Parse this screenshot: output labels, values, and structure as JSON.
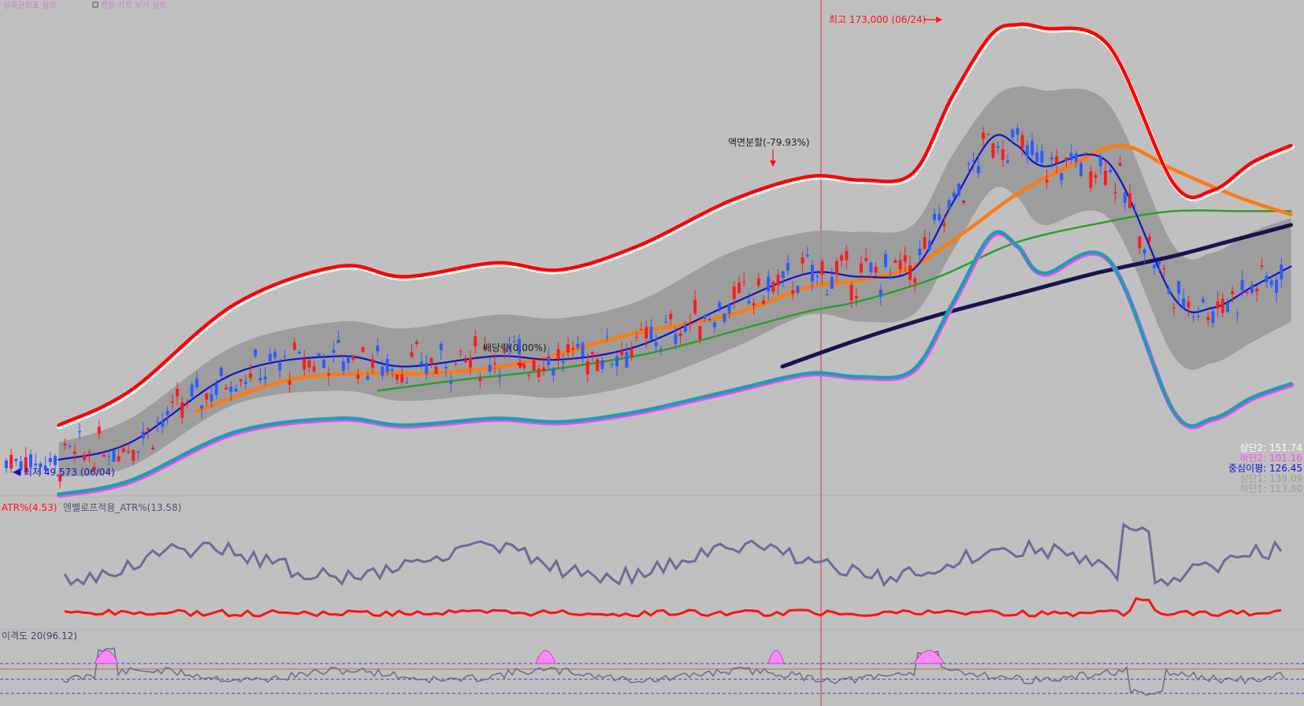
{
  "top_bar": {
    "legend_left": "일목균형표 설정",
    "legend_right": "캔들 차트 보기 설정"
  },
  "chart_data": {
    "type": "line",
    "title": "",
    "panels": [
      {
        "name": "price",
        "annotations": {
          "high": "최고 173,000 (06/24)",
          "low": "최저 49,573 (06/04)",
          "split": "액면분할(-79.93%)",
          "dividend": "배당락(0.00%)"
        },
        "legend": [
          {
            "label": "상단2: 151.74",
            "color": "#ffffff"
          },
          {
            "label": "하단2: 101.16",
            "color": "#ff44ff"
          },
          {
            "label": "중심이평: 126.45",
            "color": "#1010cc"
          },
          {
            "label": "상단1: 139.09",
            "color": "#9a9a9a"
          },
          {
            "label": "하단1: 113.80",
            "color": "#9a9a9a"
          }
        ],
        "series": [
          {
            "name": "상단2",
            "color": "#ff0000",
            "x": [
              0.045,
              0.1,
              0.18,
              0.26,
              0.31,
              0.38,
              0.43,
              0.49,
              0.56,
              0.62,
              0.66,
              0.7,
              0.73,
              0.76,
              0.78,
              0.8,
              0.85,
              0.9,
              0.93,
              0.96,
              0.99
            ],
            "y": [
              60,
              70,
              95,
              106,
              103,
              107,
              105,
              112,
              125,
              132,
              131,
              133,
              155,
              173,
              176,
              175,
              170,
              130,
              128,
              136,
              141
            ]
          },
          {
            "name": "상단1",
            "color": "#9a9a9a",
            "x": [
              0.045,
              0.1,
              0.18,
              0.26,
              0.31,
              0.38,
              0.43,
              0.49,
              0.56,
              0.62,
              0.66,
              0.7,
              0.73,
              0.76,
              0.78,
              0.8,
              0.85,
              0.9,
              0.93,
              0.96,
              0.99
            ],
            "y": [
              55,
              62,
              83,
              90,
              88,
              92,
              91,
              96,
              110,
              116,
              116,
              118,
              138,
              154,
              158,
              157,
              153,
              112,
              110,
              116,
              120
            ]
          },
          {
            "name": "중심이평",
            "color": "#1010cc",
            "x": [
              0.045,
              0.1,
              0.18,
              0.26,
              0.31,
              0.38,
              0.43,
              0.49,
              0.56,
              0.62,
              0.66,
              0.7,
              0.73,
              0.76,
              0.78,
              0.8,
              0.85,
              0.9,
              0.93,
              0.96,
              0.99
            ],
            "y": [
              50,
              55,
              75,
              80,
              77,
              80,
              79,
              83,
              95,
              104,
              103,
              105,
              124,
              143,
              141,
              135,
              136,
              97,
              94,
              100,
              106
            ]
          },
          {
            "name": "하단1",
            "color": "#9a9a9a",
            "x": [
              0.045,
              0.1,
              0.18,
              0.26,
              0.31,
              0.38,
              0.43,
              0.49,
              0.56,
              0.62,
              0.66,
              0.7,
              0.73,
              0.76,
              0.78,
              0.8,
              0.85,
              0.9,
              0.93,
              0.96,
              0.99
            ],
            "y": [
              45,
              48,
              66,
              70,
              67,
              69,
              68,
              72,
              82,
              92,
              90,
              92,
              110,
              128,
              126,
              118,
              120,
              80,
              78,
              84,
              90
            ]
          },
          {
            "name": "하단2",
            "color": "#ff44ff",
            "x": [
              0.045,
              0.1,
              0.18,
              0.26,
              0.31,
              0.38,
              0.43,
              0.49,
              0.56,
              0.62,
              0.66,
              0.7,
              0.73,
              0.76,
              0.78,
              0.8,
              0.85,
              0.9,
              0.93,
              0.96,
              0.99
            ],
            "y": [
              40,
              44,
              58,
              62,
              60,
              62,
              61,
              64,
              70,
              75,
              74,
              76,
              95,
              115,
              112,
              104,
              108,
              64,
              62,
              68,
              72
            ]
          },
          {
            "name": "MA-orange",
            "color": "#ff7a10",
            "x": [
              0.15,
              0.22,
              0.28,
              0.33,
              0.4,
              0.48,
              0.56,
              0.62,
              0.66,
              0.7,
              0.74,
              0.78,
              0.82,
              0.86,
              0.9,
              0.95,
              0.99
            ],
            "y": [
              64,
              73,
              75,
              75,
              78,
              86,
              92,
              100,
              102,
              106,
              116,
              127,
              135,
              141,
              134,
              126,
              121
            ]
          },
          {
            "name": "MA-green",
            "color": "#2aa02a",
            "x": [
              0.29,
              0.35,
              0.42,
              0.5,
              0.57,
              0.62,
              0.66,
              0.72,
              0.78,
              0.85,
              0.9,
              0.95,
              0.99
            ],
            "y": [
              70,
              73,
              76,
              81,
              88,
              93,
              96,
              103,
              113,
              119,
              122,
              122,
              122
            ]
          },
          {
            "name": "MA-navy",
            "color": "#15154d",
            "x": [
              0.6,
              0.66,
              0.72,
              0.78,
              0.84,
              0.9,
              0.95,
              0.99
            ],
            "y": [
              77,
              85,
              92,
              98,
              104,
              109,
              114,
              118
            ]
          }
        ]
      },
      {
        "name": "atr",
        "title": "ATR%(4.53)",
        "title2": "엔벨로프적용_ATR%(13.58)"
      },
      {
        "name": "disparity",
        "title": "이격도 20(96.12)"
      }
    ]
  }
}
